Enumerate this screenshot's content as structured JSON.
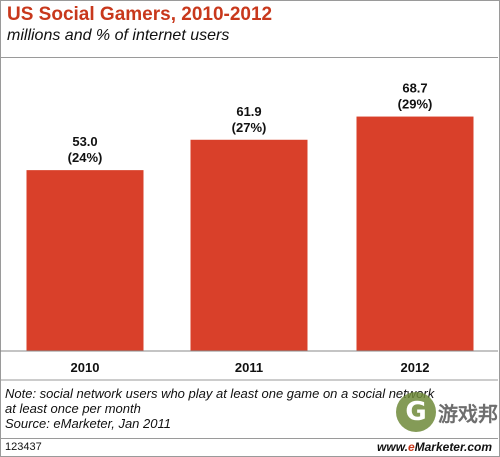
{
  "header": {
    "title": "US Social Gamers, 2010-2012",
    "subtitle": "millions and % of internet users"
  },
  "chart_data": {
    "type": "bar",
    "categories": [
      "2010",
      "2011",
      "2012"
    ],
    "values": [
      53.0,
      61.9,
      68.7
    ],
    "value_labels": [
      "53.0",
      "61.9",
      "68.7"
    ],
    "percent_labels": [
      "(24%)",
      "(27%)",
      "(29%)"
    ],
    "title": "US Social Gamers, 2010-2012",
    "subtitle": "millions and % of internet users",
    "ylim": [
      0,
      80
    ],
    "grid": false,
    "legend": "none",
    "bar_color": "#d9402a"
  },
  "footer": {
    "note_line1": "Note: social network users who play at least one game on a social network",
    "note_line2": "at least once per month",
    "source": "Source: eMarketer, Jan 2011",
    "chart_id": "123437",
    "brand_prefix": "www.",
    "brand_e": "e",
    "brand_rest": "Marketer.com"
  },
  "watermark": {
    "logo_letter": "G",
    "text": "游戏邦"
  }
}
